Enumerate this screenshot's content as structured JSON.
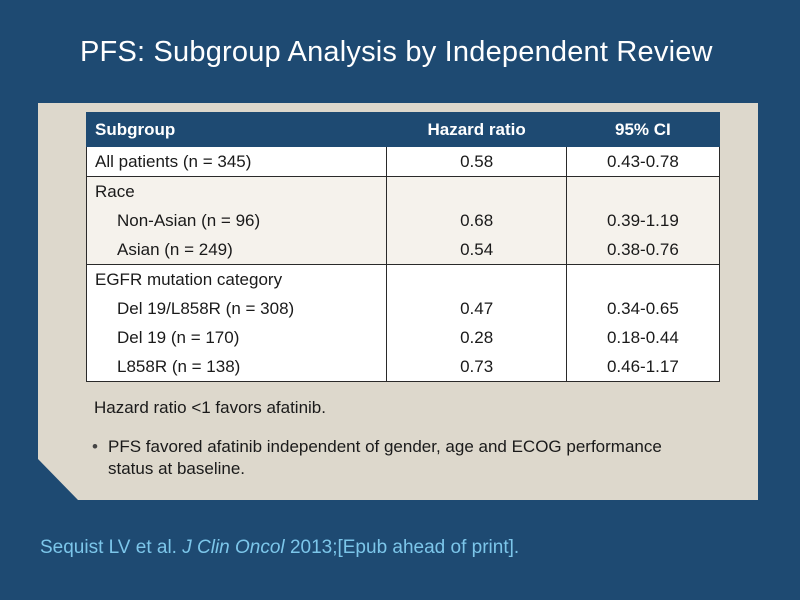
{
  "slide": {
    "title": "PFS: Subgroup Analysis by Independent Review"
  },
  "table": {
    "headers": [
      "Subgroup",
      "Hazard ratio",
      "95% CI"
    ],
    "all_patients": {
      "label": "All patients (n = 345)",
      "hr": "0.58",
      "ci": "0.43-0.78"
    },
    "race": {
      "heading": "Race",
      "rows": [
        {
          "label": "Non-Asian (n = 96)",
          "hr": "0.68",
          "ci": "0.39-1.19"
        },
        {
          "label": "Asian (n = 249)",
          "hr": "0.54",
          "ci": "0.38-0.76"
        }
      ]
    },
    "egfr": {
      "heading": "EGFR mutation category",
      "rows": [
        {
          "label": "Del 19/L858R (n = 308)",
          "hr": "0.47",
          "ci": "0.34-0.65"
        },
        {
          "label": "Del 19 (n = 170)",
          "hr": "0.28",
          "ci": "0.18-0.44"
        },
        {
          "label": "L858R (n = 138)",
          "hr": "0.73",
          "ci": "0.46-1.17"
        }
      ]
    }
  },
  "note": "Hazard ratio <1 favors afatinib.",
  "bullet": {
    "symbol": "•",
    "text": "PFS favored afatinib independent of gender, age and ECOG performance status at baseline."
  },
  "citation": {
    "authors": "Sequist LV et al.",
    "journal": "J Clin Oncol",
    "details": "2013;[Epub ahead of print]."
  }
}
